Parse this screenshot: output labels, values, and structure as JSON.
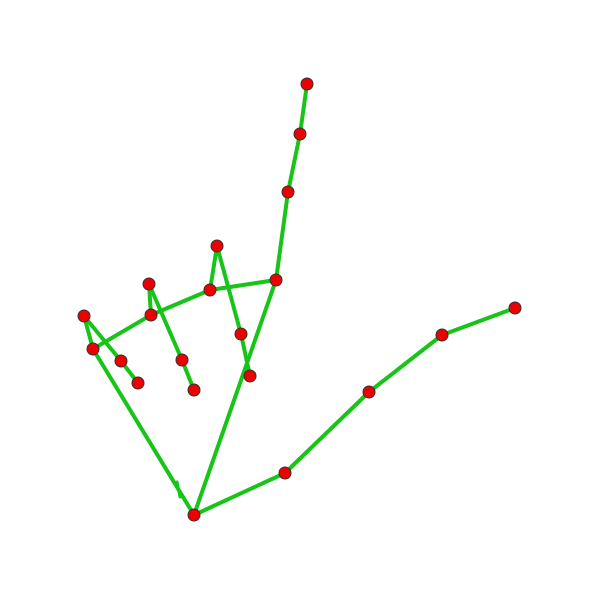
{
  "diagram": {
    "type": "hand-landmark-skeleton",
    "colors": {
      "background": "#ffffff",
      "bone": "#17c417",
      "joint_fill": "#ee0000",
      "joint_stroke": "#333333"
    },
    "landmark_count": 21,
    "connection_count": 21
  }
}
